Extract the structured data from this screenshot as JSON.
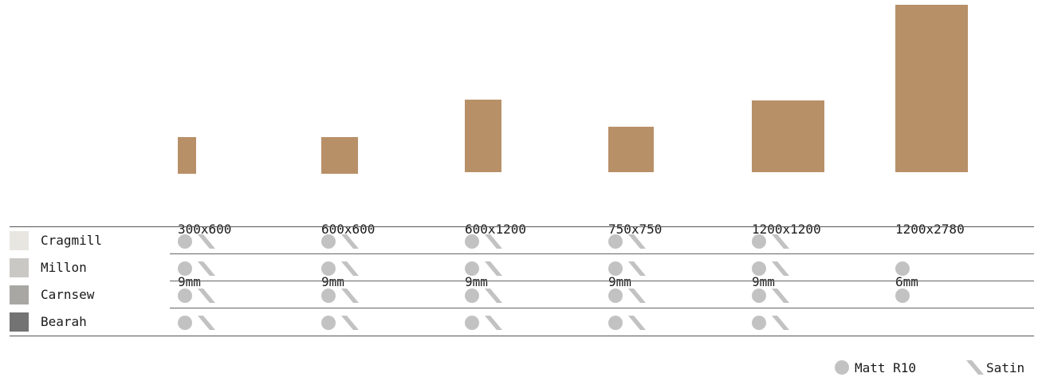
{
  "sizes": [
    {
      "dim": "300x600",
      "thickness": "9mm"
    },
    {
      "dim": "600x600",
      "thickness": "9mm"
    },
    {
      "dim": "600x1200",
      "thickness": "9mm"
    },
    {
      "dim": "750x750",
      "thickness": "9mm"
    },
    {
      "dim": "1200x1200",
      "thickness": "9mm"
    },
    {
      "dim": "1200x2780",
      "thickness": "6mm"
    }
  ],
  "products": [
    {
      "name": "Cragmill",
      "swatch_color": "#e8e6e0",
      "finishes": [
        [
          "matt",
          "satin"
        ],
        [
          "matt",
          "satin"
        ],
        [
          "matt",
          "satin"
        ],
        [
          "matt",
          "satin"
        ],
        [
          "matt",
          "satin"
        ],
        []
      ]
    },
    {
      "name": "Millon",
      "swatch_color": "#c9c8c5",
      "finishes": [
        [
          "matt",
          "satin"
        ],
        [
          "matt",
          "satin"
        ],
        [
          "matt",
          "satin"
        ],
        [
          "matt",
          "satin"
        ],
        [
          "matt",
          "satin"
        ],
        [
          "matt"
        ]
      ]
    },
    {
      "name": "Carnsew",
      "swatch_color": "#a8a7a4",
      "finishes": [
        [
          "matt",
          "satin"
        ],
        [
          "matt",
          "satin"
        ],
        [
          "matt",
          "satin"
        ],
        [
          "matt",
          "satin"
        ],
        [
          "matt",
          "satin"
        ],
        [
          "matt"
        ]
      ]
    },
    {
      "name": "Bearah",
      "swatch_color": "#737373",
      "finishes": [
        [
          "matt",
          "satin"
        ],
        [
          "matt",
          "satin"
        ],
        [
          "matt",
          "satin"
        ],
        [
          "matt",
          "satin"
        ],
        [
          "matt",
          "satin"
        ],
        []
      ]
    }
  ],
  "legend": {
    "matt_label": "Matt R10",
    "satin_label": "Satin"
  },
  "colors": {
    "tile": "#b89068",
    "marker": "#c2c2c2"
  }
}
